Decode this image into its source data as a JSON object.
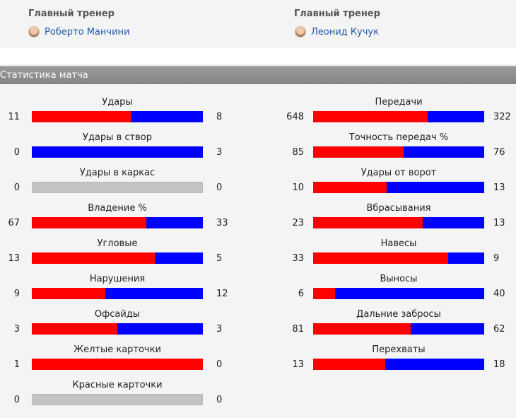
{
  "coaches": [
    {
      "label": "Главный тренер",
      "name": "Роберто Манчини"
    },
    {
      "label": "Главный тренер",
      "name": "Леонид Кучук"
    }
  ],
  "section_title": "Статистика матча",
  "stats_left": [
    {
      "title": "Удары",
      "home": "11",
      "away": "8",
      "home_share": 0.58
    },
    {
      "title": "Удары в створ",
      "home": "0",
      "away": "3",
      "home_share": 0
    },
    {
      "title": "Удары в каркас",
      "home": "0",
      "away": "0",
      "home_share": null
    },
    {
      "title": "Владение %",
      "home": "67",
      "away": "33",
      "home_share": 0.67
    },
    {
      "title": "Угловые",
      "home": "13",
      "away": "5",
      "home_share": 0.72
    },
    {
      "title": "Нарушения",
      "home": "9",
      "away": "12",
      "home_share": 0.43
    },
    {
      "title": "Офсайды",
      "home": "3",
      "away": "3",
      "home_share": 0.5
    },
    {
      "title": "Желтые карточки",
      "home": "1",
      "away": "0",
      "home_share": 1
    },
    {
      "title": "Красные карточки",
      "home": "0",
      "away": "0",
      "home_share": null
    }
  ],
  "stats_right": [
    {
      "title": "Передачи",
      "home": "648",
      "away": "322",
      "home_share": 0.67
    },
    {
      "title": "Точность передач %",
      "home": "85",
      "away": "76",
      "home_share": 0.53
    },
    {
      "title": "Удары от ворот",
      "home": "10",
      "away": "13",
      "home_share": 0.43
    },
    {
      "title": "Вбрасывания",
      "home": "23",
      "away": "13",
      "home_share": 0.64
    },
    {
      "title": "Навесы",
      "home": "33",
      "away": "9",
      "home_share": 0.79
    },
    {
      "title": "Выносы",
      "home": "6",
      "away": "40",
      "home_share": 0.13
    },
    {
      "title": "Дальние забросы",
      "home": "81",
      "away": "62",
      "home_share": 0.57
    },
    {
      "title": "Перехваты",
      "home": "13",
      "away": "18",
      "home_share": 0.42
    }
  ],
  "colors": {
    "home": "#ff0000",
    "away": "#0000ff",
    "empty": "#c3c3c3",
    "header": "#8e8e8e",
    "link": "#1f5aa8"
  }
}
